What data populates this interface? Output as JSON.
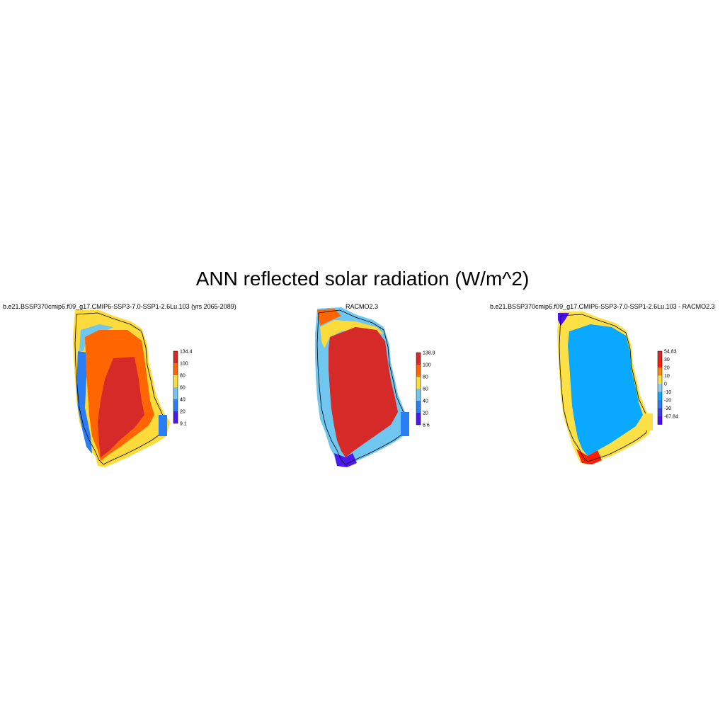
{
  "title": "ANN reflected solar radiation (W/m^2)",
  "panels": [
    {
      "title": "b.e21.BSSP370cmip6.f09_g17.CMIP6-SSP3-7.0-SSP1-2.6Lu.103 (yrs 2065-2089)",
      "colorbar": {
        "labels": [
          "134.4",
          "100",
          "80",
          "60",
          "40",
          "20",
          "9.1"
        ],
        "colors": [
          "#d62a28",
          "#ff6500",
          "#fddb3a",
          "#6fc6ee",
          "#2a7ef5",
          "#4b18f0"
        ]
      }
    },
    {
      "title": "RACMO2.3",
      "colorbar": {
        "labels": [
          "138.9",
          "100",
          "80",
          "60",
          "40",
          "20",
          "6.6"
        ],
        "colors": [
          "#d62a28",
          "#ff6500",
          "#fddb3a",
          "#6fc6ee",
          "#2a7ef5",
          "#4b18f0"
        ]
      }
    },
    {
      "title": "b.e21.BSSP370cmip6.f09_g17.CMIP6-SSP3-7.0-SSP1-2.6Lu.103 - RACMO2.3",
      "colorbar": {
        "labels": [
          "54.83",
          "30",
          "20",
          "10",
          "0",
          "-10",
          "-20",
          "-30",
          "-67.84"
        ],
        "colors": [
          "#d62a28",
          "#ff1e00",
          "#ff8a00",
          "#fde046",
          "#8fcff0",
          "#0aa8ff",
          "#2a7ef5",
          "#3a40e0",
          "#4b10f0"
        ]
      }
    }
  ]
}
